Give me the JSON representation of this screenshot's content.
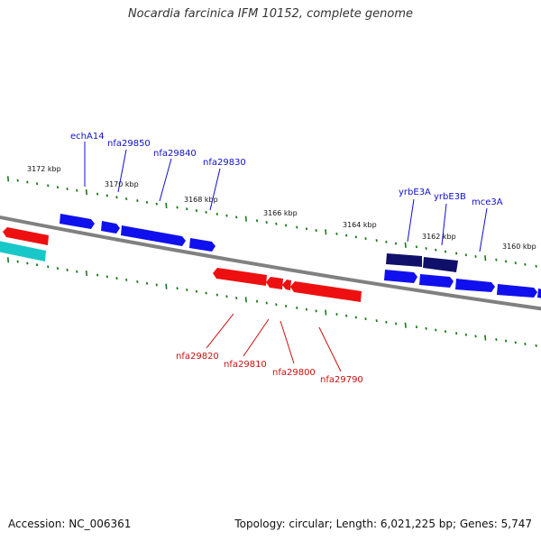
{
  "title": "Nocardia farcinica IFM 10152, complete genome",
  "footer": {
    "accession": "Accession: NC_006361",
    "summary": "Topology: circular; Length: 6,021,225 bp; Genes: 5,747"
  },
  "scale_labels": [
    "3172 kbp",
    "3170 kbp",
    "3168 kbp",
    "3166 kbp",
    "3164 kbp",
    "3162 kbp",
    "3160 kbp"
  ],
  "colors": {
    "forward_gene": "#1010ee",
    "forward_gene_dark": "#10106a",
    "reverse_gene": "#ee1010",
    "rna_gene": "#18c8c8",
    "backbone": "#808080",
    "ticks": "#1a7a1a",
    "forward_label": "#1010cc",
    "reverse_label": "#cc1010"
  },
  "gene_labels": {
    "forward": [
      "echA14",
      "nfa29850",
      "nfa29840",
      "nfa29830",
      "yrbE3A",
      "yrbE3B",
      "mce3A"
    ],
    "reverse": [
      "nfa29820",
      "nfa29810",
      "nfa29800",
      "nfa29790"
    ]
  }
}
